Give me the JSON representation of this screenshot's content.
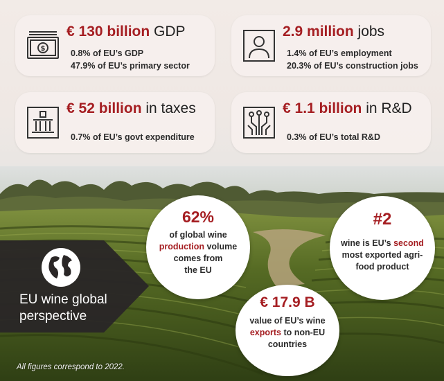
{
  "cards": {
    "gdp": {
      "value": "€ 130 billion",
      "suffix": " GDP",
      "lines": [
        "0.8% of EU’s GDP",
        "47.9% of EU’s primary sector"
      ],
      "icon": "banknote-icon"
    },
    "jobs": {
      "value": "2.9 million",
      "suffix": " jobs",
      "lines": [
        "1.4% of EU’s employment",
        "20.3% of EU’s construction jobs"
      ],
      "icon": "person-icon"
    },
    "tax": {
      "value": "€ 52 billion",
      "suffix": " in taxes",
      "lines": [
        "0.7% of EU’s govt expenditure"
      ],
      "icon": "government-building-icon"
    },
    "rd": {
      "value": "€ 1.1 billion",
      "suffix": " in R&D",
      "lines": [
        "0.3% of EU’s total R&D"
      ],
      "icon": "circuit-chip-icon"
    }
  },
  "bubbles": {
    "production": {
      "value": "62%",
      "l1": "of global wine",
      "l2a": "production",
      "l2b": " volume",
      "l3": "comes from",
      "l4": "the EU"
    },
    "exports_rank": {
      "value": "#2",
      "l1a": "wine is EU’s ",
      "l1b": "second",
      "l2": "most exported agri-",
      "l3": "food product"
    },
    "exports_value": {
      "value": "€ 17.9 B",
      "l1": "value of EU’s wine",
      "l2a": "exports",
      "l2b": " to non-EU",
      "l3": "countries"
    }
  },
  "panel": {
    "title_line1": "EU wine global",
    "title_line2": "perspective",
    "icon": "globe-icon"
  },
  "footnote": "All figures correspond to 2022.",
  "colors": {
    "accent": "#a51e22",
    "panel": "#2a2626",
    "card_bg": "#f6eeec"
  }
}
